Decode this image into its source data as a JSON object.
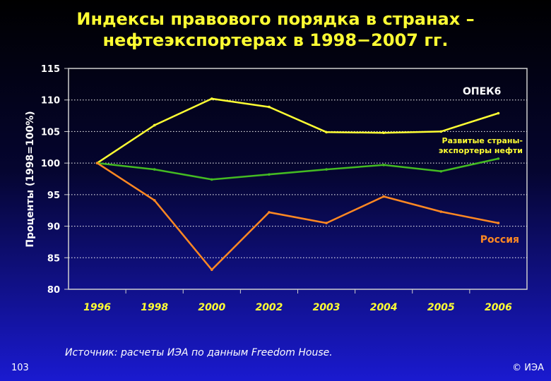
{
  "slide": {
    "title_line1": "Индексы правового порядка в странах –",
    "title_line2": "нефтеэкспортерах в 1998−2007 гг.",
    "source": "Источник: расчеты ИЭА по данным Freedom House.",
    "page_number": "103",
    "copyright": "© ИЭА"
  },
  "chart_data": {
    "type": "line",
    "title": "Индексы правового порядка в странах – нефтеэкспортерах в 1998−2007 гг.",
    "ylabel": "Проценты (1998=100%)",
    "xlabel": "",
    "categories": [
      "1996",
      "1998",
      "2000",
      "2002",
      "2003",
      "2004",
      "2005",
      "2006"
    ],
    "ylim": [
      80,
      115
    ],
    "yticks": [
      80,
      85,
      90,
      95,
      100,
      105,
      110,
      115
    ],
    "grid": true,
    "series": [
      {
        "name": "ОПЕК6",
        "label_lines": [
          "ОПЕК6"
        ],
        "color": "#ffff33",
        "label_color": "#ffffff",
        "values": [
          100,
          106,
          110.2,
          108.9,
          104.9,
          104.8,
          105,
          107.9
        ]
      },
      {
        "name": "Развитые страны-экспортеры нефти",
        "label_lines": [
          "Развитые страны-",
          "экспортеры нефти"
        ],
        "color": "#44bb22",
        "label_color": "#ffff33",
        "values": [
          100,
          99,
          97.4,
          98.2,
          99,
          99.7,
          98.7,
          100.7
        ]
      },
      {
        "name": "Россия",
        "label_lines": [
          "Россия"
        ],
        "color": "#ff8822",
        "label_color": "#ff8822",
        "values": [
          100,
          94.1,
          83.1,
          92.2,
          90.5,
          94.7,
          92.3,
          90.5
        ]
      }
    ]
  }
}
